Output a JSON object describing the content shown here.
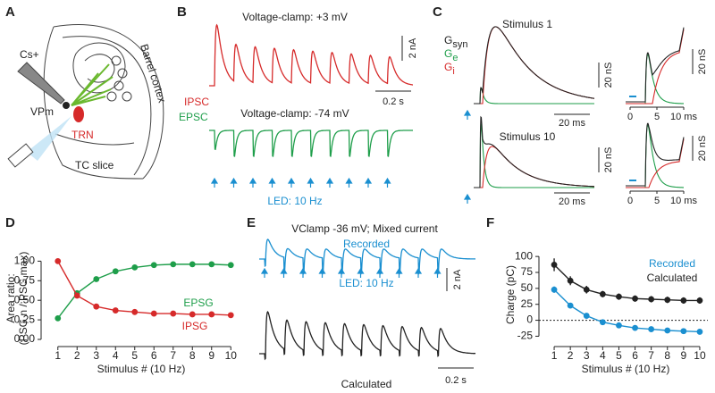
{
  "panel_labels": [
    "A",
    "B",
    "C",
    "D",
    "E",
    "F"
  ],
  "panel_a": {
    "cs": "Cs+",
    "cortex": "Barrel cortex",
    "vpm": "VPm",
    "trn": "TRN",
    "slice": "TC slice"
  },
  "panel_b": {
    "title_top": "Voltage-clamp: +3 mV",
    "trace_top": "IPSC",
    "scale_y": "2 nA",
    "scale_x": "0.2 s",
    "title_bottom": "Voltage-clamp: -74 mV",
    "trace_bottom": "EPSC",
    "stim": "LED: 10 Hz"
  },
  "panel_c": {
    "stim_first": "Stimulus 1",
    "stim_last": "Stimulus 10",
    "legend": [
      {
        "text": "G",
        "sub": "syn",
        "color": "#222222"
      },
      {
        "text": "G",
        "sub": "e",
        "color": "#1e9e4a"
      },
      {
        "text": "G",
        "sub": "i",
        "color": "#d62a2a"
      }
    ],
    "scale_y": "20 nS",
    "scale_x": "20 ms",
    "inset_ticks": [
      "0",
      "5",
      "10 ms"
    ]
  },
  "panel_e": {
    "title": "VClamp -36 mV; Mixed current",
    "recorded": "Recorded",
    "stim": "LED: 10 Hz",
    "scale_y": "2 nA",
    "calculated": "Calculated",
    "scale_x": "0.2 s"
  },
  "chart_data": [
    {
      "type": "line",
      "xlabel": "Stimulus # (10 Hz)",
      "ylabel": [
        "Area ratio:",
        "(PSG n / PSG max)"
      ],
      "x": [
        1,
        2,
        3,
        4,
        5,
        6,
        7,
        8,
        9,
        10
      ],
      "xlim": [
        0.5,
        10.5
      ],
      "xticks": [
        1,
        2,
        3,
        4,
        5,
        6,
        7,
        8,
        9,
        10
      ],
      "ylim": [
        0,
        1.05
      ],
      "yticks": [
        {
          "value": 0,
          "label": "0.00"
        },
        {
          "value": 0.25,
          "label": "0.25"
        },
        {
          "value": 0.5,
          "label": "0.50"
        },
        {
          "value": 0.75,
          "label": "0.75"
        },
        {
          "value": 1,
          "label": "1.00"
        }
      ],
      "series": [
        {
          "name": "EPSG",
          "color": "#1e9e4a",
          "values": [
            0.27,
            0.59,
            0.77,
            0.87,
            0.92,
            0.95,
            0.96,
            0.96,
            0.96,
            0.95
          ]
        },
        {
          "name": "IPSG",
          "color": "#d62a2a",
          "values": [
            1.0,
            0.56,
            0.42,
            0.37,
            0.35,
            0.33,
            0.33,
            0.32,
            0.32,
            0.31
          ]
        }
      ]
    },
    {
      "type": "line",
      "xlabel": "Stimulus # (10 Hz)",
      "ylabel": [
        "Charge (pC)"
      ],
      "x": [
        1,
        2,
        3,
        4,
        5,
        6,
        7,
        8,
        9,
        10
      ],
      "xlim": [
        0.5,
        10.5
      ],
      "xticks": [
        1,
        2,
        3,
        4,
        5,
        6,
        7,
        8,
        9,
        10
      ],
      "ylim": [
        -30,
        110
      ],
      "yticks": [
        -25,
        0,
        25,
        50,
        75,
        100
      ],
      "zero_line": true,
      "series": [
        {
          "name": "Recorded",
          "color": "#1a8fd0",
          "values": [
            48,
            23,
            7,
            -3,
            -8,
            -12,
            -14,
            -16,
            -17,
            -18
          ],
          "errors": [
            5,
            4,
            4,
            4,
            4,
            4,
            4,
            4,
            4,
            4
          ]
        },
        {
          "name": "Calculated",
          "color": "#222222",
          "values": [
            87,
            62,
            48,
            41,
            37,
            34,
            33,
            32,
            31,
            31
          ],
          "errors": [
            10,
            7,
            6,
            5,
            5,
            5,
            5,
            5,
            5,
            5
          ]
        }
      ]
    }
  ]
}
